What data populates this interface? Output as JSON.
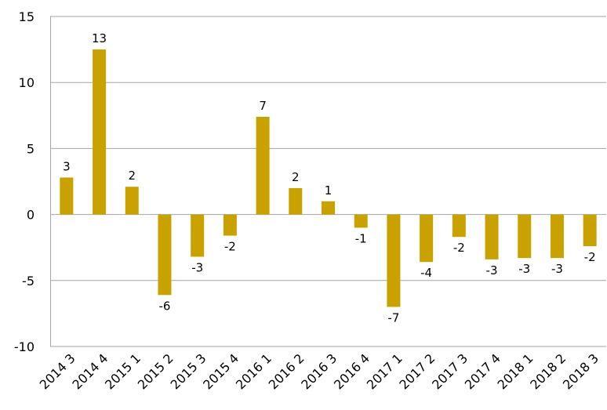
{
  "chart_data": {
    "type": "bar",
    "title": "",
    "xlabel": "",
    "ylabel": "",
    "categories": [
      "2014 3",
      "2014 4",
      "2015 1",
      "2015 2",
      "2015 3",
      "2015 4",
      "2016 1",
      "2016 2",
      "2016 3",
      "2016 4",
      "2017 1",
      "2017 2",
      "2017 3",
      "2017 4",
      "2018 1",
      "2018 2",
      "2018 3"
    ],
    "values": [
      2.8,
      12.5,
      2.1,
      -6.1,
      -3.2,
      -1.6,
      7.4,
      2.0,
      1.0,
      -1.0,
      -7.0,
      -3.6,
      -1.7,
      -3.4,
      -3.3,
      -3.3,
      -2.4
    ],
    "data_labels": [
      "3",
      "13",
      "2",
      "-6",
      "-3",
      "-2",
      "7",
      "2",
      "1",
      "-1",
      "-7",
      "-4",
      "-2",
      "-3",
      "-3",
      "-3",
      "-2"
    ],
    "ylim": [
      -10,
      15
    ],
    "yticks": [
      -10,
      -5,
      0,
      5,
      10,
      15
    ],
    "grid": true,
    "legend": "none",
    "bar_color": "#c9a200"
  }
}
